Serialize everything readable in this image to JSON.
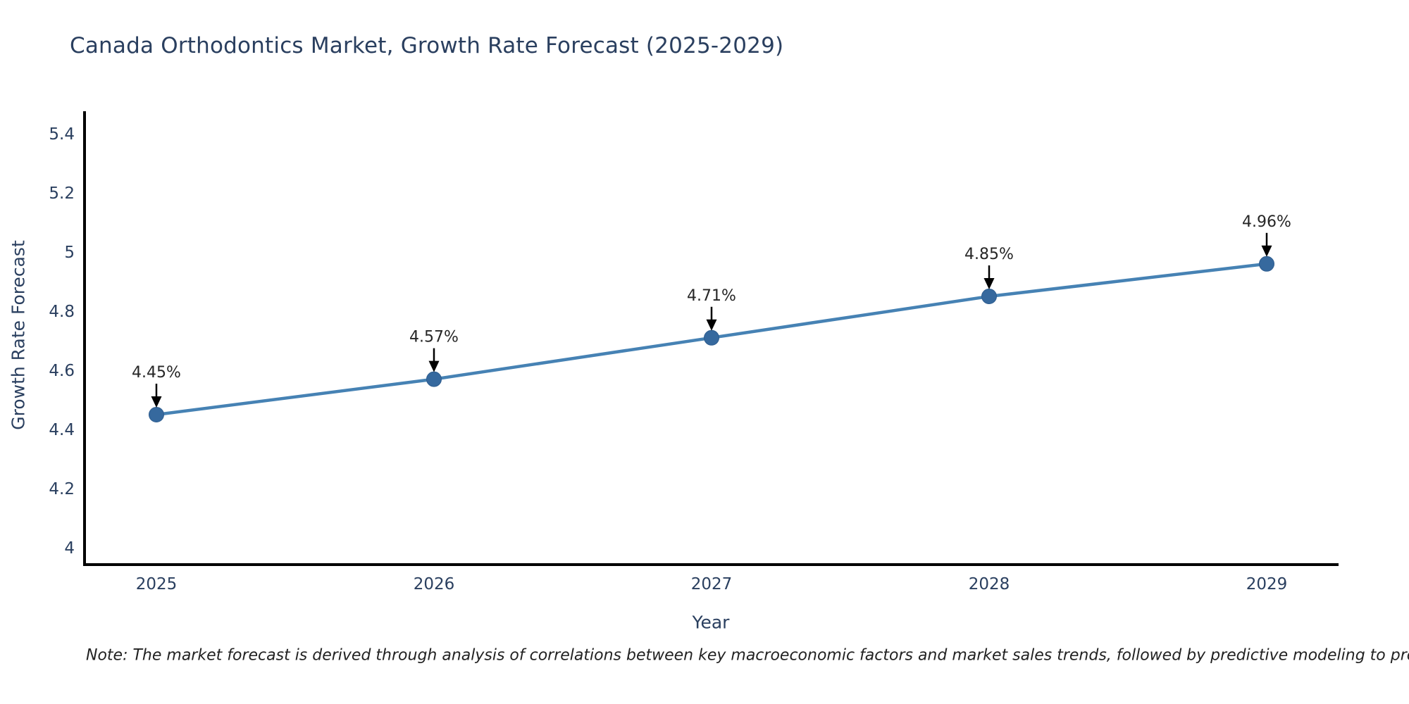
{
  "title": {
    "text": "Canada Orthodontics Market, Growth Rate Forecast (2025-2029)"
  },
  "note": {
    "text": "Note: The market forecast is derived through analysis of correlations between key macroeconomic factors and market sales trends, followed by predictive modeling to project future sales"
  },
  "chart_data": {
    "type": "line",
    "title": "Canada Orthodontics Market, Growth Rate Forecast (2025-2029)",
    "xlabel": "Year",
    "ylabel": "Growth Rate Forecast",
    "x": [
      2025,
      2026,
      2027,
      2028,
      2029
    ],
    "xtick_labels": [
      "2025",
      "2026",
      "2027",
      "2028",
      "2029"
    ],
    "series": [
      {
        "name": "Growth Rate Forecast",
        "values": [
          4.45,
          4.57,
          4.71,
          4.85,
          4.96
        ]
      }
    ],
    "point_labels": [
      "4.45%",
      "4.57%",
      "4.71%",
      "4.85%",
      "4.96%"
    ],
    "yticks": [
      4,
      4.2,
      4.4,
      4.6,
      4.8,
      5,
      5.2,
      5.4
    ],
    "ytick_labels": [
      "4",
      "4.2",
      "4.4",
      "4.6",
      "4.8",
      "5",
      "5.2",
      "5.4"
    ],
    "ylim": [
      3.94,
      5.48
    ],
    "grid": false,
    "legend": "none",
    "colors": {
      "line": "#4682b4",
      "marker": "#36699e",
      "marker_edge": "#2e5d8f",
      "axis_text": "#2a3f5f",
      "annotation_text": "#262626",
      "arrow": "#000000",
      "spine": "#000000",
      "note_text": "#222222"
    }
  }
}
